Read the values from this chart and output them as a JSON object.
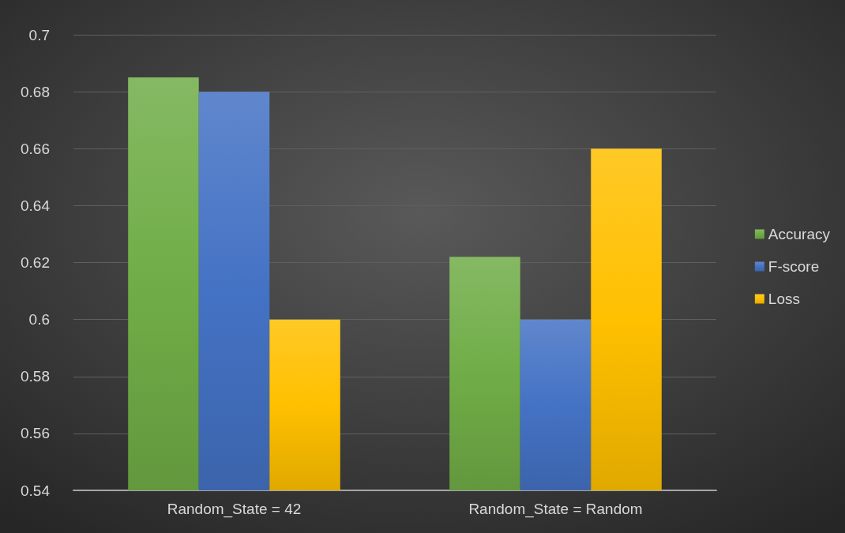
{
  "chart_data": {
    "type": "bar",
    "categories": [
      "Random_State = 42",
      "Random_State = Random"
    ],
    "series": [
      {
        "name": "Accuracy",
        "color": "#70ad47",
        "values": [
          0.685,
          0.622
        ]
      },
      {
        "name": "F-score",
        "color": "#4472c4",
        "values": [
          0.68,
          0.6
        ]
      },
      {
        "name": "Loss",
        "color": "#ffc000",
        "values": [
          0.6,
          0.66
        ]
      }
    ],
    "ylim": [
      0.54,
      0.7
    ],
    "yticks": [
      0.54,
      0.56,
      0.58,
      0.6,
      0.62,
      0.64,
      0.66,
      0.68,
      0.7
    ],
    "grid": "y",
    "legend": "right"
  }
}
